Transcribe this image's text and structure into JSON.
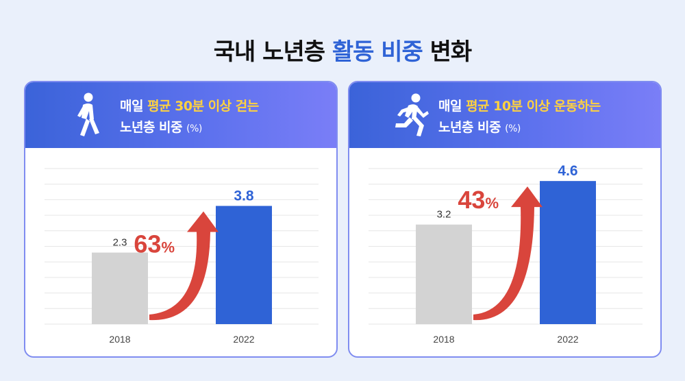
{
  "title": {
    "part1": "국내 노년층 ",
    "highlight": "활동 비중",
    "part2": " 변화"
  },
  "colors": {
    "accent": "#2f63d6",
    "bar_prev": "#d3d3d3",
    "bar_curr": "#2f63d6",
    "growth": "#d9453c",
    "header_highlight": "#ffd23f"
  },
  "cards": [
    {
      "icon": "walking-person-icon",
      "line1_pre": "매일 ",
      "line1_highlight": "평균 30분 이상 걷는",
      "line2": "노년층 비중",
      "unit": "(%)",
      "growth_number": "63",
      "growth_unit": "%",
      "chart_data": {
        "type": "bar",
        "title": "",
        "xlabel": "",
        "ylabel": "",
        "categories": [
          "2018",
          "2022"
        ],
        "values": [
          2.3,
          3.8
        ],
        "value_labels": [
          "2.3",
          "3.8"
        ],
        "ylim": [
          0,
          5
        ],
        "grid": true
      }
    },
    {
      "icon": "running-person-icon",
      "line1_pre": "매일 ",
      "line1_highlight": "평균 10분 이상 운동하는",
      "line2": "노년층 비중",
      "unit": "(%)",
      "growth_number": "43",
      "growth_unit": "%",
      "chart_data": {
        "type": "bar",
        "title": "",
        "xlabel": "",
        "ylabel": "",
        "categories": [
          "2018",
          "2022"
        ],
        "values": [
          3.2,
          4.6
        ],
        "value_labels": [
          "3.2",
          "4.6"
        ],
        "ylim": [
          0,
          5
        ],
        "grid": true
      }
    }
  ]
}
